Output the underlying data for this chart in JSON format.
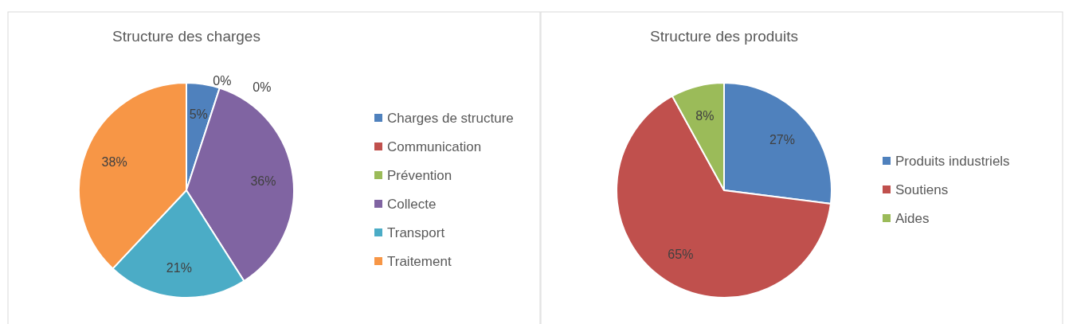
{
  "chart_data": [
    {
      "type": "pie",
      "title": "Structure des charges",
      "categories": [
        "Charges de structure",
        "Communication",
        "Prévention",
        "Collecte",
        "Transport",
        "Traitement"
      ],
      "values": [
        5,
        0,
        0,
        36,
        21,
        38
      ],
      "colors": [
        "#4f81bd",
        "#c0504d",
        "#9bbb59",
        "#8064a2",
        "#4bacc6",
        "#f79646"
      ],
      "value_labels": [
        "5%",
        "0%",
        "0%",
        "36%",
        "21%",
        "38%"
      ],
      "legend": "right"
    },
    {
      "type": "pie",
      "title": "Structure des produits",
      "categories": [
        "Produits industriels",
        "Soutiens",
        "Aides"
      ],
      "values": [
        27,
        65,
        8
      ],
      "colors": [
        "#4f81bd",
        "#c0504d",
        "#9bbb59"
      ],
      "value_labels": [
        "27%",
        "65%",
        "8%"
      ],
      "legend": "right"
    }
  ]
}
